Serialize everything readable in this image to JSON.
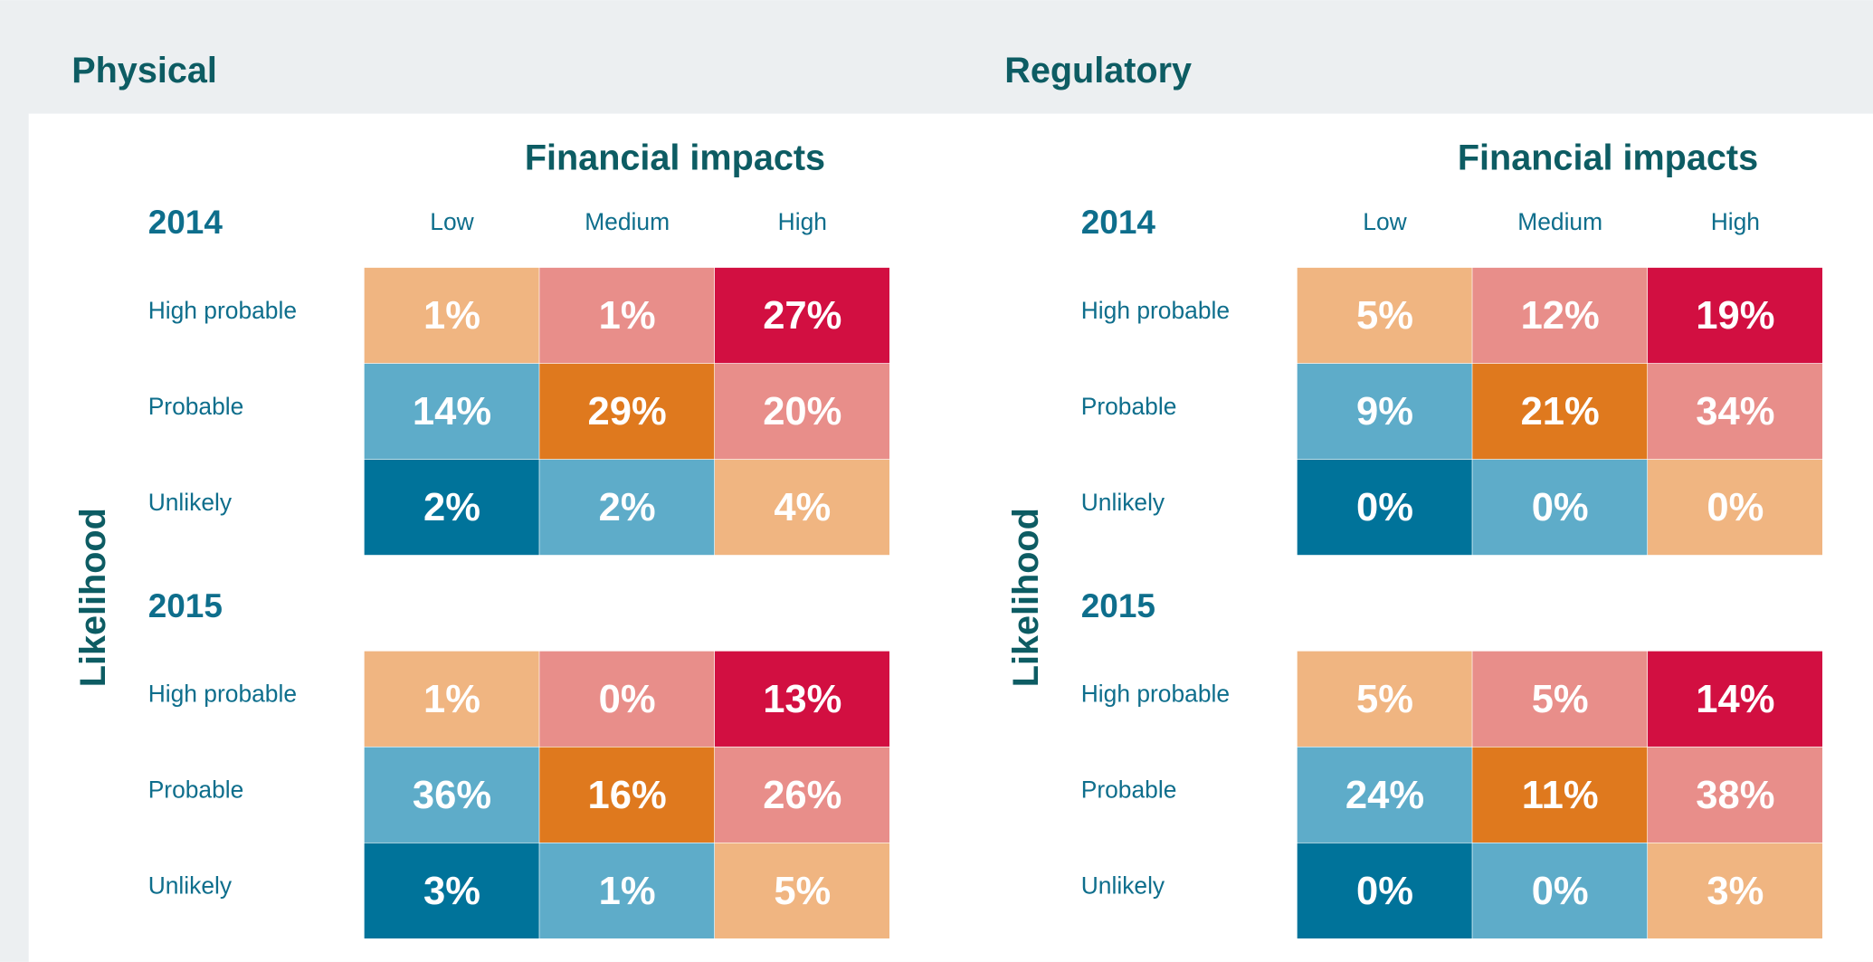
{
  "chart_data": [
    {
      "type": "heatmap",
      "title": "Physical",
      "subtitle": "Financial impacts",
      "y_label": "Likelihood",
      "x_categories": [
        "Low",
        "Medium",
        "High"
      ],
      "y_categories": [
        "High probable",
        "Probable",
        "Unlikely"
      ],
      "colors": [
        [
          "#f0b581",
          "#e88e8a",
          "#d20f41"
        ],
        [
          "#5eacc9",
          "#df791e",
          "#e88e8a"
        ],
        [
          "#00739a",
          "#5eacc9",
          "#f0b581"
        ]
      ],
      "panels": [
        {
          "label": "2014",
          "values": [
            [
              1,
              1,
              27
            ],
            [
              14,
              29,
              20
            ],
            [
              2,
              2,
              4
            ]
          ],
          "value_labels": [
            [
              "1%",
              "1%",
              "27%"
            ],
            [
              "14%",
              "29%",
              "20%"
            ],
            [
              "2%",
              "2%",
              "4%"
            ]
          ]
        },
        {
          "label": "2015",
          "values": [
            [
              1,
              0,
              13
            ],
            [
              36,
              16,
              26
            ],
            [
              3,
              1,
              5
            ]
          ],
          "value_labels": [
            [
              "1%",
              "0%",
              "13%"
            ],
            [
              "36%",
              "16%",
              "26%"
            ],
            [
              "3%",
              "1%",
              "5%"
            ]
          ]
        }
      ]
    },
    {
      "type": "heatmap",
      "title": "Regulatory",
      "subtitle": "Financial impacts",
      "y_label": "Likelihood",
      "x_categories": [
        "Low",
        "Medium",
        "High"
      ],
      "y_categories": [
        "High probable",
        "Probable",
        "Unlikely"
      ],
      "colors": [
        [
          "#f0b581",
          "#e88e8a",
          "#d20f41"
        ],
        [
          "#5eacc9",
          "#df791e",
          "#e88e8a"
        ],
        [
          "#00739a",
          "#5eacc9",
          "#f0b581"
        ]
      ],
      "panels": [
        {
          "label": "2014",
          "values": [
            [
              5,
              12,
              19
            ],
            [
              9,
              21,
              34
            ],
            [
              0,
              0,
              0
            ]
          ],
          "value_labels": [
            [
              "5%",
              "12%",
              "19%"
            ],
            [
              "9%",
              "21%",
              "34%"
            ],
            [
              "0%",
              "0%",
              "0%"
            ]
          ]
        },
        {
          "label": "2015",
          "values": [
            [
              5,
              5,
              14
            ],
            [
              24,
              11,
              38
            ],
            [
              0,
              0,
              3
            ]
          ],
          "value_labels": [
            [
              "5%",
              "5%",
              "14%"
            ],
            [
              "24%",
              "11%",
              "38%"
            ],
            [
              "0%",
              "0%",
              "3%"
            ]
          ]
        }
      ]
    }
  ]
}
